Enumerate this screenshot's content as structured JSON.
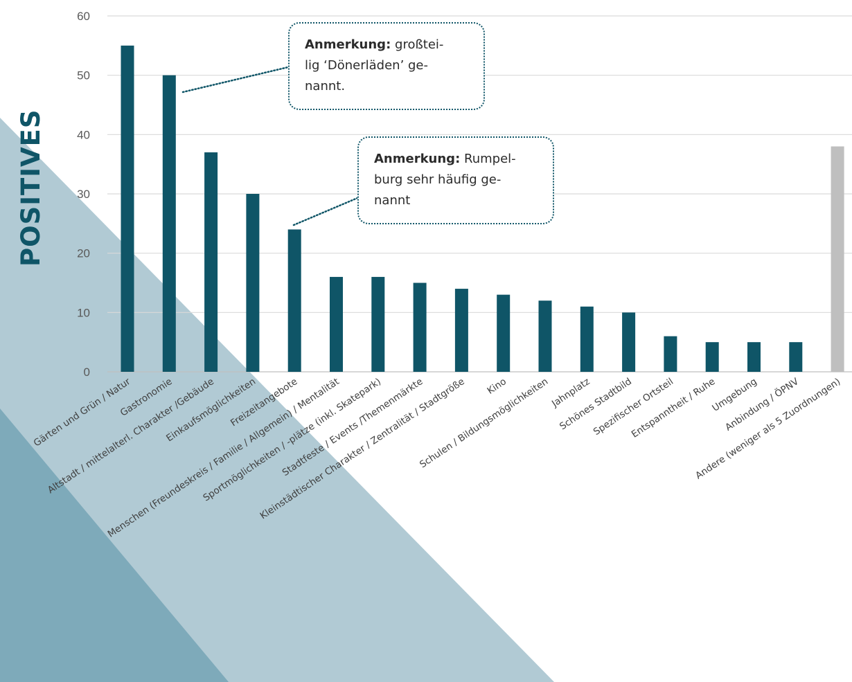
{
  "side_title": "POSITIVES",
  "colors": {
    "bar": "#0f5567",
    "bar_other": "#bfbfbf",
    "grid": "#d9d9d9",
    "note_border": "#0f5567",
    "deco_light": "#a9c4cf",
    "deco_dark": "#6e9fb1"
  },
  "notes": [
    {
      "lead": "Anmerkung:",
      "lines": [
        "großtei-",
        "lig ‘Dönerläden’ ge-",
        "nannt."
      ],
      "points_to": "Gastronomie"
    },
    {
      "lead": "Anmerkung:",
      "lines": [
        "Rumpel-",
        "burg sehr häufig ge-",
        "nannt"
      ],
      "points_to": "Freizeitangebote"
    }
  ],
  "chart_data": {
    "type": "bar",
    "title": "",
    "xlabel": "",
    "ylabel": "",
    "ylim": [
      0,
      60
    ],
    "yticks": [
      0,
      10,
      20,
      30,
      40,
      50,
      60
    ],
    "grid": true,
    "categories": [
      "Gärten und Grün / Natur",
      "Gastronomie",
      "Altstadt / mittelalterl. Charakter /Gebäude",
      "Einkaufsmöglichkeiten",
      "Freizeitangebote",
      "Menschen (Freundeskreis / Familie / Allgemein) / Mentalität",
      "Sportmöglichkeiten / -plätze (inkl. Skatepark)",
      "Stadtfeste / Events /Themenmärkte",
      "Kleinstädtischer Charakter / Zentralität / Stadtgröße",
      "Kino",
      "Schulen / Bildungsmöglichkeiten",
      "Jahnplatz",
      "Schönes Stadtbild",
      "Spezifischer Ortsteil",
      "Entspanntheit / Ruhe",
      "Umgebung",
      "Anbindung / ÖPNV",
      "Andere (weniger als 5 Zuordnungen)"
    ],
    "values": [
      55,
      50,
      37,
      30,
      24,
      16,
      16,
      15,
      14,
      13,
      12,
      11,
      10,
      6,
      5,
      5,
      5,
      38
    ],
    "highlight_index": 17
  }
}
